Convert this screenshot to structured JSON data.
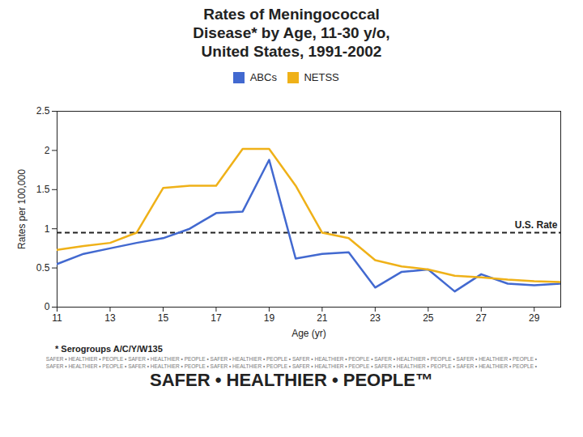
{
  "chart_data": {
    "type": "line",
    "title": "Rates of Meningococcal\nDisease* by Age, 11-30 y/o,\nUnited States, 1991-2002",
    "x": [
      11,
      12,
      13,
      14,
      15,
      16,
      17,
      18,
      19,
      20,
      21,
      22,
      23,
      24,
      25,
      26,
      27,
      28,
      29,
      30
    ],
    "series": [
      {
        "name": "ABCs",
        "values": [
          0.55,
          0.68,
          0.75,
          0.82,
          0.88,
          1.0,
          1.2,
          1.22,
          1.88,
          0.62,
          0.68,
          0.7,
          0.25,
          0.45,
          0.48,
          0.2,
          0.42,
          0.3,
          0.28,
          0.3
        ]
      },
      {
        "name": "NETSS",
        "values": [
          0.73,
          0.78,
          0.82,
          0.95,
          1.52,
          1.55,
          1.55,
          2.02,
          2.02,
          1.55,
          0.95,
          0.88,
          0.6,
          0.52,
          0.48,
          0.4,
          0.38,
          0.35,
          0.33,
          0.32
        ]
      }
    ],
    "xlabel": "Age (yr)",
    "ylabel": "Rates per 100,000",
    "xlim": [
      11,
      30
    ],
    "xticks": [
      11,
      13,
      15,
      17,
      19,
      21,
      23,
      25,
      27,
      29
    ],
    "ylim": [
      0,
      2.5
    ],
    "yticks": [
      0,
      0.5,
      1,
      1.5,
      2,
      2.5
    ],
    "grid": false,
    "legend": "top",
    "reference_line": {
      "y": 0.95,
      "label": "U.S. Rate"
    },
    "annotations": [
      "* Serogroups A/C/Y/W135",
      "SAFER • HEALTHIER • PEOPLE • SAFER • HEALTHIER • PEOPLE • SAFER • HEALTHIER • PEOPLE • SAFER • HEALTHIER • PEOPLE • SAFER • HEALTHIER • PEOPLE • SAFER • HEALTHIER • PEOPLE •",
      "SAFER • HEALTHIER • PEOPLE • SAFER • HEALTHIER • PEOPLE • SAFER • HEALTHIER • PEOPLE • SAFER • HEALTHIER • PEOPLE • SAFER • HEALTHIER • PEOPLE • SAFER • HEALTHIER • PEOPLE •",
      "SAFER • HEALTHIER • PEOPLE™"
    ]
  }
}
